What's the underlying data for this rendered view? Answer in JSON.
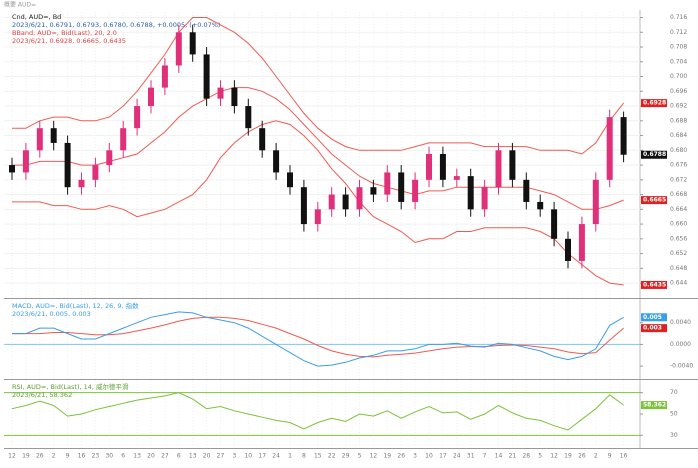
{
  "header": "概要 AUD=",
  "chart_data": [
    {
      "type": "candlestick",
      "legend": [
        "Cnd, AUD=, Bd",
        "2023/6/21, 0.6791, 0.6793, 0.6780, 0.6788, +0.0005, (+0.07%)",
        "BBand, AUD=, Bid(Last), 20, 2.0",
        "2023/6/21, 0.6928, 0.6665, 0.6435"
      ],
      "categories": [
        "12",
        "19",
        "26",
        "2",
        "9",
        "16",
        "23",
        "30",
        "6",
        "13",
        "20",
        "27",
        "6",
        "13",
        "20",
        "27",
        "3",
        "10",
        "17",
        "24",
        "1",
        "8",
        "15",
        "22",
        "29",
        "5",
        "12",
        "19",
        "26",
        "3",
        "10",
        "17",
        "24",
        "31",
        "7",
        "14",
        "21",
        "28",
        "5",
        "12",
        "19",
        "26",
        "2",
        "9",
        "16"
      ],
      "open": [
        0.676,
        0.674,
        0.68,
        0.686,
        0.682,
        0.67,
        0.672,
        0.676,
        0.68,
        0.686,
        0.692,
        0.697,
        0.703,
        0.712,
        0.706,
        0.694,
        0.697,
        0.692,
        0.686,
        0.68,
        0.674,
        0.67,
        0.66,
        0.664,
        0.668,
        0.664,
        0.67,
        0.668,
        0.674,
        0.666,
        0.672,
        0.679,
        0.672,
        0.673,
        0.664,
        0.67,
        0.68,
        0.672,
        0.666,
        0.664,
        0.656,
        0.65,
        0.66,
        0.672,
        0.689
      ],
      "high": [
        0.678,
        0.682,
        0.688,
        0.688,
        0.684,
        0.674,
        0.678,
        0.682,
        0.688,
        0.694,
        0.699,
        0.705,
        0.714,
        0.714,
        0.708,
        0.699,
        0.699,
        0.694,
        0.688,
        0.682,
        0.676,
        0.672,
        0.666,
        0.67,
        0.67,
        0.672,
        0.672,
        0.676,
        0.676,
        0.674,
        0.681,
        0.681,
        0.675,
        0.675,
        0.672,
        0.682,
        0.682,
        0.674,
        0.668,
        0.666,
        0.658,
        0.662,
        0.674,
        0.691,
        0.6905
      ],
      "low": [
        0.672,
        0.672,
        0.678,
        0.68,
        0.668,
        0.668,
        0.67,
        0.674,
        0.678,
        0.684,
        0.69,
        0.695,
        0.701,
        0.704,
        0.692,
        0.692,
        0.69,
        0.684,
        0.678,
        0.672,
        0.668,
        0.658,
        0.658,
        0.662,
        0.662,
        0.662,
        0.666,
        0.666,
        0.664,
        0.664,
        0.67,
        0.67,
        0.67,
        0.662,
        0.662,
        0.668,
        0.67,
        0.664,
        0.662,
        0.654,
        0.648,
        0.648,
        0.658,
        0.67,
        0.6768
      ],
      "close": [
        0.674,
        0.68,
        0.686,
        0.682,
        0.67,
        0.672,
        0.676,
        0.68,
        0.686,
        0.692,
        0.697,
        0.703,
        0.712,
        0.706,
        0.694,
        0.697,
        0.692,
        0.686,
        0.68,
        0.674,
        0.67,
        0.66,
        0.664,
        0.668,
        0.664,
        0.67,
        0.668,
        0.674,
        0.666,
        0.672,
        0.679,
        0.672,
        0.673,
        0.664,
        0.67,
        0.68,
        0.672,
        0.666,
        0.664,
        0.656,
        0.65,
        0.66,
        0.672,
        0.689,
        0.6788
      ],
      "upper": [
        0.686,
        0.686,
        0.688,
        0.689,
        0.689,
        0.688,
        0.688,
        0.689,
        0.692,
        0.696,
        0.701,
        0.706,
        0.712,
        0.716,
        0.716,
        0.714,
        0.712,
        0.709,
        0.705,
        0.7,
        0.695,
        0.69,
        0.686,
        0.683,
        0.681,
        0.68,
        0.68,
        0.68,
        0.68,
        0.681,
        0.682,
        0.682,
        0.682,
        0.682,
        0.681,
        0.681,
        0.681,
        0.681,
        0.68,
        0.68,
        0.68,
        0.679,
        0.682,
        0.688,
        0.6928
      ],
      "middle": [
        0.676,
        0.676,
        0.677,
        0.677,
        0.677,
        0.676,
        0.676,
        0.677,
        0.678,
        0.679,
        0.682,
        0.685,
        0.689,
        0.692,
        0.694,
        0.696,
        0.697,
        0.697,
        0.696,
        0.694,
        0.691,
        0.687,
        0.683,
        0.679,
        0.676,
        0.673,
        0.671,
        0.67,
        0.669,
        0.668,
        0.669,
        0.669,
        0.67,
        0.67,
        0.67,
        0.67,
        0.67,
        0.67,
        0.669,
        0.668,
        0.666,
        0.664,
        0.664,
        0.665,
        0.6665
      ],
      "lower": [
        0.666,
        0.666,
        0.666,
        0.665,
        0.665,
        0.664,
        0.664,
        0.665,
        0.664,
        0.662,
        0.663,
        0.664,
        0.666,
        0.668,
        0.672,
        0.678,
        0.682,
        0.685,
        0.687,
        0.688,
        0.687,
        0.684,
        0.68,
        0.675,
        0.671,
        0.666,
        0.662,
        0.66,
        0.658,
        0.655,
        0.656,
        0.656,
        0.658,
        0.658,
        0.659,
        0.659,
        0.659,
        0.659,
        0.658,
        0.656,
        0.652,
        0.649,
        0.646,
        0.644,
        0.6435
      ],
      "up_color": "#e0307a",
      "down_color": "#111111",
      "band_color": "#f05a50",
      "ylim": [
        0.6405,
        0.7175
      ],
      "yticks": [
        0.644,
        0.648,
        0.652,
        0.656,
        {
          "value": 0.66,
          "label": "0.660"
        },
        0.664,
        0.668,
        0.672,
        0.676,
        {
          "value": 0.68,
          "label": "0.680"
        },
        0.684,
        0.688,
        0.692,
        0.696,
        {
          "value": 0.7,
          "label": "0.700"
        },
        0.704,
        0.708,
        0.712,
        0.716
      ],
      "grid": true
    },
    {
      "type": "macd",
      "legend": [
        "MACD, AUD=, Bid(Last), 12, 26, 9, 指数",
        "2023/6/21, 0.005, 0.003"
      ],
      "macd": [
        0.002,
        0.002,
        0.003,
        0.003,
        0.002,
        0.001,
        0.001,
        0.002,
        0.003,
        0.004,
        0.005,
        0.0055,
        0.006,
        0.0058,
        0.005,
        0.0045,
        0.004,
        0.003,
        0.0015,
        0.0,
        -0.0015,
        -0.003,
        -0.004,
        -0.0038,
        -0.0033,
        -0.0025,
        -0.002,
        -0.0012,
        -0.0012,
        -0.0008,
        0.0,
        0.0,
        0.0002,
        -0.0003,
        -0.0005,
        0.0002,
        0.0,
        -0.0006,
        -0.0012,
        -0.0022,
        -0.0028,
        -0.0022,
        -0.0008,
        0.0035,
        0.005
      ],
      "signal": [
        0.002,
        0.002,
        0.002,
        0.0022,
        0.0022,
        0.002,
        0.0018,
        0.0018,
        0.002,
        0.0025,
        0.003,
        0.0036,
        0.0043,
        0.0048,
        0.005,
        0.005,
        0.0048,
        0.0044,
        0.0037,
        0.003,
        0.002,
        0.001,
        -0.0002,
        -0.0012,
        -0.0018,
        -0.0022,
        -0.0023,
        -0.002,
        -0.0018,
        -0.0016,
        -0.0012,
        -0.0008,
        -0.0005,
        -0.0004,
        -0.0004,
        -0.0002,
        -0.0001,
        -0.0002,
        -0.0005,
        -0.0008,
        -0.0014,
        -0.0017,
        -0.0015,
        0.0008,
        0.003
      ],
      "macd_color": "#3a9ee8",
      "signal_color": "#f05a50",
      "level_color": "#7cc4ee",
      "levels": [
        0
      ],
      "ylim": [
        -0.006,
        0.008
      ],
      "yticks": [
        {
          "value": 0.004,
          "label": "0.0040"
        },
        {
          "value": 0,
          "label": "0.0000"
        },
        {
          "value": -0.004,
          "label": "-0.0040"
        }
      ]
    },
    {
      "type": "rsi",
      "legend": [
        "RSI, AUD=, Bid(Last), 14, 威尔德平滑",
        "2023/6/21, 58.362"
      ],
      "values": [
        55,
        58,
        62,
        58,
        48,
        50,
        54,
        57,
        60,
        63,
        65,
        67,
        70,
        64,
        55,
        57,
        53,
        50,
        47,
        44,
        42,
        36,
        42,
        46,
        43,
        50,
        48,
        53,
        46,
        52,
        57,
        51,
        52,
        45,
        50,
        58,
        51,
        46,
        44,
        39,
        35,
        45,
        55,
        68,
        58.362
      ],
      "color": "#7cc23a",
      "level_color": "#7cc23a",
      "levels": [
        70,
        30
      ],
      "ylim": [
        20,
        80
      ],
      "yticks": [
        70,
        50,
        30
      ]
    }
  ]
}
